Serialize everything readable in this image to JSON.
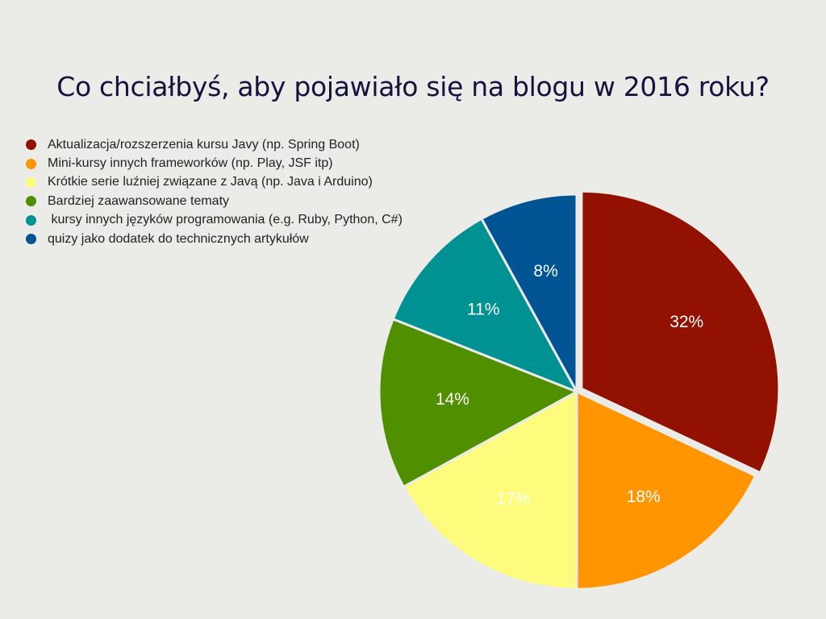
{
  "slide": {
    "title": "Co chciałbyś, aby pojawiało się na blogu w 2016 roku?"
  },
  "chart_data": {
    "type": "pie",
    "title": "Co chciałbyś, aby pojawiało się na blogu w 2016 roku?",
    "legend_position": "top-left",
    "start_angle": "12 o'clock, clockwise",
    "exploded": [
      "Aktualizacja/rozszerzenia kursu Javy (np. Spring Boot)"
    ],
    "slices": [
      {
        "name": "Aktualizacja/rozszerzenia kursu Javy (np. Spring Boot)",
        "value": 32,
        "label": "32%",
        "color": "#931100"
      },
      {
        "name": "Mini-kursy innych frameworków (np. Play, JSF itp)",
        "value": 18,
        "label": "18%",
        "color": "#ff9500"
      },
      {
        "name": "Krótkie serie luźniej związane z Javą (np. Java i Arduino)",
        "value": 17,
        "label": "17%",
        "color": "#fefb7d"
      },
      {
        "name": "Bardziej zaawansowane tematy",
        "value": 14,
        "label": "14%",
        "color": "#4f8f00"
      },
      {
        "name": " kursy innych języków programowania (e.g. Ruby, Python, C#)",
        "value": 11,
        "label": "11%",
        "color": "#009193"
      },
      {
        "name": "quizy jako dodatek do technicznych artykułów",
        "value": 8,
        "label": "8%",
        "color": "#005493"
      }
    ]
  }
}
